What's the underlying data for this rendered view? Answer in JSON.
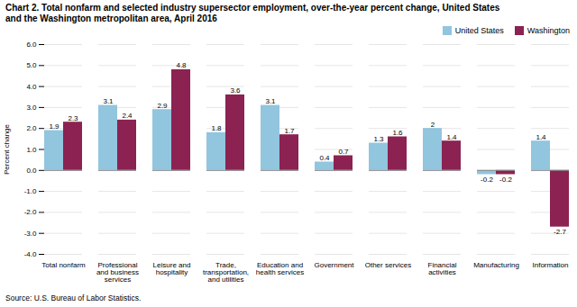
{
  "chart_data": {
    "type": "bar",
    "title": "Chart 2. Total nonfarm and selected industry supersector employment, over-the-year percent change, United States",
    "subtitle": "and the Washington metropolitan area, April 2016",
    "ylabel": "Percent change",
    "caption": "Source: U.S. Bureau of Labor Statistics.",
    "categories": [
      "Total nonfarm",
      "Professional\nand business\nservices",
      "Leisure and\nhospitality",
      "Trade,\ntransportation,\nand utilities",
      "Education and\nhealth services",
      "Government",
      "Other services",
      "Financial\nactivities",
      "Manufacturing",
      "Information"
    ],
    "series": [
      {
        "name": "United States",
        "color": "#92C5DE",
        "values": [
          1.9,
          3.1,
          2.9,
          1.8,
          3.1,
          0.4,
          1.3,
          2.0,
          -0.2,
          1.4
        ]
      },
      {
        "name": "Washington",
        "color": "#8B2252",
        "values": [
          2.3,
          2.4,
          4.8,
          3.6,
          1.7,
          0.7,
          1.6,
          1.4,
          -0.2,
          -2.7
        ]
      }
    ],
    "ylim": [
      -4.0,
      6.0
    ],
    "yticks": [
      {
        "value": -4.0,
        "label": "-4.0"
      },
      {
        "value": -3.0,
        "label": "-3.0"
      },
      {
        "value": -2.0,
        "label": "-2.0"
      },
      {
        "value": -1.0,
        "label": "-1.0"
      },
      {
        "value": 0.0,
        "label": "0.0"
      },
      {
        "value": 1.0,
        "label": "1.0"
      },
      {
        "value": 2.0,
        "label": "2.0"
      },
      {
        "value": 3.0,
        "label": "3.0"
      },
      {
        "value": 4.0,
        "label": "4.0"
      },
      {
        "value": 5.0,
        "label": "5.0"
      },
      {
        "value": 6.0,
        "label": "6.0"
      }
    ],
    "grid": true,
    "legend": "upper right",
    "data_labels": true
  }
}
